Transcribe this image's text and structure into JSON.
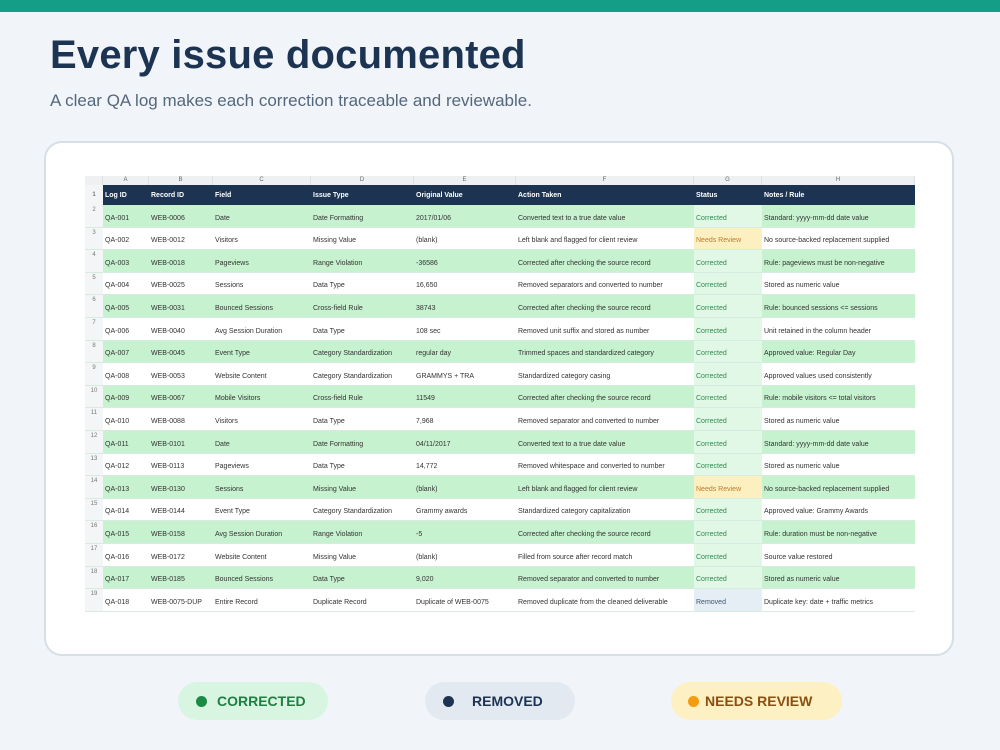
{
  "header": {
    "title": "Every issue documented",
    "subtitle": "A clear QA log makes each correction traceable and reviewable."
  },
  "sheet": {
    "column_letters": [
      "A",
      "B",
      "C",
      "D",
      "E",
      "F",
      "G",
      "H"
    ],
    "columns": [
      "Log ID",
      "Record ID",
      "Field",
      "Issue Type",
      "Original Value",
      "Action Taken",
      "Status",
      "Notes / Rule"
    ],
    "rows": [
      [
        "QA-001",
        "WEB-0006",
        "Date",
        "Date Formatting",
        "2017/01/06",
        "Converted text to a true date value",
        "Corrected",
        "Standard: yyyy-mm-dd date value"
      ],
      [
        "QA-002",
        "WEB-0012",
        "Visitors",
        "Missing Value",
        "(blank)",
        "Left blank and flagged for client review",
        "Needs Review",
        "No source-backed replacement supplied"
      ],
      [
        "QA-003",
        "WEB-0018",
        "Pageviews",
        "Range Violation",
        "-36586",
        "Corrected after checking the source record",
        "Corrected",
        "Rule: pageviews must be non-negative"
      ],
      [
        "QA-004",
        "WEB-0025",
        "Sessions",
        "Data Type",
        " 16,650",
        "Removed separators and converted to number",
        "Corrected",
        "Stored as numeric value"
      ],
      [
        "QA-005",
        "WEB-0031",
        "Bounced Sessions",
        "Cross-field Rule",
        "38743",
        "Corrected after checking the source record",
        "Corrected",
        "Rule: bounced sessions <= sessions"
      ],
      [
        "QA-006",
        "WEB-0040",
        "Avg Session Duration",
        "Data Type",
        "108 sec",
        "Removed unit suffix and stored as number",
        "Corrected",
        "Unit retained in the column header"
      ],
      [
        "QA-007",
        "WEB-0045",
        "Event Type",
        "Category Standardization",
        " regular day",
        "Trimmed spaces and standardized category",
        "Corrected",
        "Approved value: Regular Day"
      ],
      [
        "QA-008",
        "WEB-0053",
        "Website Content",
        "Category Standardization",
        "GRAMMYS + TRA",
        "Standardized category casing",
        "Corrected",
        "Approved values used consistently"
      ],
      [
        "QA-009",
        "WEB-0067",
        "Mobile Visitors",
        "Cross-field Rule",
        "11549",
        "Corrected after checking the source record",
        "Corrected",
        "Rule: mobile visitors <= total visitors"
      ],
      [
        "QA-010",
        "WEB-0088",
        "Visitors",
        "Data Type",
        "7,968",
        "Removed separator and converted to number",
        "Corrected",
        "Stored as numeric value"
      ],
      [
        "QA-011",
        "WEB-0101",
        "Date",
        "Date Formatting",
        "04/11/2017",
        "Converted text to a true date value",
        "Corrected",
        "Standard: yyyy-mm-dd date value"
      ],
      [
        "QA-012",
        "WEB-0113",
        "Pageviews",
        "Data Type",
        " 14,772",
        "Removed whitespace and converted to number",
        "Corrected",
        "Stored as numeric value"
      ],
      [
        "QA-013",
        "WEB-0130",
        "Sessions",
        "Missing Value",
        "(blank)",
        "Left blank and flagged for client review",
        "Needs Review",
        "No source-backed replacement supplied"
      ],
      [
        "QA-014",
        "WEB-0144",
        "Event Type",
        "Category Standardization",
        "Grammy awards",
        "Standardized category capitalization",
        "Corrected",
        "Approved value: Grammy Awards"
      ],
      [
        "QA-015",
        "WEB-0158",
        "Avg Session Duration",
        "Range Violation",
        "-5",
        "Corrected after checking the source record",
        "Corrected",
        "Rule: duration must be non-negative"
      ],
      [
        "QA-016",
        "WEB-0172",
        "Website Content",
        "Missing Value",
        "(blank)",
        "Filled from source after record match",
        "Corrected",
        "Source value restored"
      ],
      [
        "QA-017",
        "WEB-0185",
        "Bounced Sessions",
        "Data Type",
        "9,020",
        "Removed separator and converted to number",
        "Corrected",
        "Stored as numeric value"
      ],
      [
        "QA-018",
        "WEB-0075-DUP",
        "Entire Record",
        "Duplicate Record",
        "Duplicate of WEB-0075",
        "Removed duplicate from the cleaned deliverable",
        "Removed",
        "Duplicate key: date + traffic metrics"
      ]
    ]
  },
  "legend": {
    "corrected": "CORRECTED",
    "removed": "REMOVED",
    "needs_review": "NEEDS REVIEW"
  },
  "colors": {
    "accent": "#149e87",
    "navy": "#1c3452",
    "corrected": "#1a8a45",
    "needs_review": "#f39c12"
  }
}
